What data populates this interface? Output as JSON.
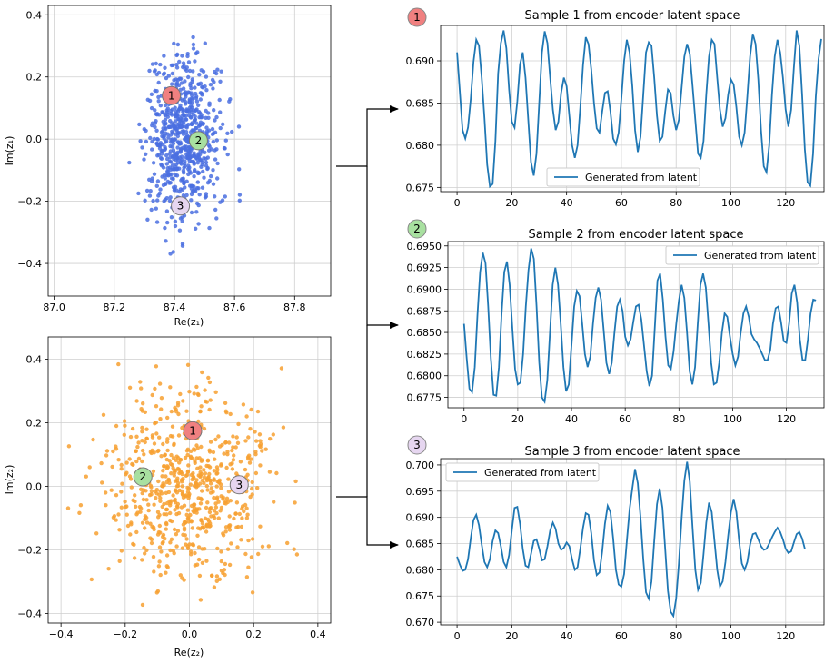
{
  "colors": {
    "blue_points": "#4a6ee0",
    "orange_points": "#f7a030",
    "line": "#1f77b4",
    "marker1": "#f08080",
    "marker2": "#a8e0a0",
    "marker3": "#e6d6f0"
  },
  "chart_data": [
    {
      "id": "scatter1",
      "type": "scatter",
      "xlabel": "Re(z₁)",
      "ylabel": "Im(z₁)",
      "xlim": [
        86.98,
        87.92
      ],
      "ylim": [
        -0.505,
        0.43
      ],
      "xticks": [
        87.0,
        87.2,
        87.4,
        87.6,
        87.8
      ],
      "xtick_labels": [
        "87.0",
        "87.2",
        "87.4",
        "87.6",
        "87.8"
      ],
      "yticks": [
        -0.4,
        -0.2,
        0.0,
        0.2,
        0.4
      ],
      "ytick_labels": [
        "−0.4",
        "−0.2",
        "0.0",
        "0.2",
        "0.4"
      ],
      "cloud": {
        "center_x": 87.43,
        "center_y": 0.0,
        "spread_x": 0.06,
        "spread_y": 0.13,
        "count": 700,
        "seed": 7
      },
      "points": [
        {
          "label": "1",
          "x": 87.39,
          "y": 0.14,
          "color": "marker1"
        },
        {
          "label": "2",
          "x": 87.48,
          "y": -0.005,
          "color": "marker2"
        },
        {
          "label": "3",
          "x": 87.42,
          "y": -0.215,
          "color": "marker3"
        }
      ]
    },
    {
      "id": "scatter2",
      "type": "scatter",
      "xlabel": "Re(z₂)",
      "ylabel": "Im(z₂)",
      "xlim": [
        -0.44,
        0.44
      ],
      "ylim": [
        -0.43,
        0.47
      ],
      "xticks": [
        -0.4,
        -0.2,
        0.0,
        0.2,
        0.4
      ],
      "xtick_labels": [
        "−0.4",
        "−0.2",
        "0.0",
        "0.2",
        "0.4"
      ],
      "yticks": [
        -0.4,
        -0.2,
        0.0,
        0.2,
        0.4
      ],
      "ytick_labels": [
        "−0.4",
        "−0.2",
        "0.0",
        "0.2",
        "0.4"
      ],
      "cloud": {
        "center_x": 0.0,
        "center_y": 0.0,
        "spread_x": 0.13,
        "spread_y": 0.14,
        "count": 700,
        "seed": 13
      },
      "points": [
        {
          "label": "1",
          "x": 0.01,
          "y": 0.175,
          "color": "marker1"
        },
        {
          "label": "2",
          "x": -0.145,
          "y": 0.03,
          "color": "marker2"
        },
        {
          "label": "3",
          "x": 0.155,
          "y": 0.005,
          "color": "marker3"
        }
      ]
    },
    {
      "id": "line1",
      "type": "line",
      "title": "Sample 1 from encoder latent space",
      "badge": "1",
      "badge_color": "marker1",
      "legend": "Generated from latent",
      "legend_pos": "lower-center",
      "xlim": [
        -6,
        134
      ],
      "ylim": [
        0.6745,
        0.6942
      ],
      "xticks": [
        0,
        20,
        40,
        60,
        80,
        100,
        120
      ],
      "xtick_labels": [
        "0",
        "20",
        "40",
        "60",
        "80",
        "100",
        "120"
      ],
      "yticks": [
        0.675,
        0.68,
        0.685,
        0.69
      ],
      "ytick_labels": [
        "0.675",
        "0.680",
        "0.685",
        "0.690"
      ],
      "x_start": 0,
      "x_step": 1,
      "y": [
        0.691,
        0.6864,
        0.6818,
        0.6808,
        0.6821,
        0.6855,
        0.6899,
        0.6925,
        0.6918,
        0.688,
        0.6832,
        0.6777,
        0.6751,
        0.6754,
        0.6805,
        0.6885,
        0.6921,
        0.6936,
        0.6915,
        0.6866,
        0.6828,
        0.6821,
        0.6852,
        0.6896,
        0.691,
        0.688,
        0.683,
        0.678,
        0.6764,
        0.679,
        0.685,
        0.691,
        0.6935,
        0.6921,
        0.688,
        0.6842,
        0.6818,
        0.6828,
        0.6862,
        0.688,
        0.687,
        0.6835,
        0.68,
        0.6785,
        0.68,
        0.6845,
        0.6895,
        0.6928,
        0.692,
        0.689,
        0.685,
        0.682,
        0.6815,
        0.684,
        0.6862,
        0.6864,
        0.684,
        0.6808,
        0.6801,
        0.6815,
        0.6855,
        0.69,
        0.6925,
        0.691,
        0.687,
        0.6818,
        0.6792,
        0.681,
        0.686,
        0.691,
        0.6922,
        0.6918,
        0.688,
        0.6835,
        0.6805,
        0.681,
        0.684,
        0.6866,
        0.6862,
        0.6835,
        0.6818,
        0.683,
        0.6868,
        0.6905,
        0.692,
        0.6908,
        0.687,
        0.683,
        0.679,
        0.6785,
        0.6805,
        0.686,
        0.6905,
        0.6925,
        0.692,
        0.688,
        0.6842,
        0.6822,
        0.6832,
        0.686,
        0.6878,
        0.6872,
        0.6845,
        0.681,
        0.68,
        0.6815,
        0.6858,
        0.6905,
        0.6932,
        0.692,
        0.6878,
        0.6818,
        0.6775,
        0.6768,
        0.68,
        0.686,
        0.6905,
        0.6925,
        0.691,
        0.688,
        0.6842,
        0.6822,
        0.6842,
        0.6892,
        0.6936,
        0.6918,
        0.686,
        0.6795,
        0.6756,
        0.6752,
        0.679,
        0.6858,
        0.6902,
        0.6926
      ]
    },
    {
      "id": "line2",
      "type": "line",
      "title": "Sample 2 from encoder latent space",
      "badge": "2",
      "badge_color": "marker2",
      "legend": "Generated from latent",
      "legend_pos": "upper-right",
      "xlim": [
        -6,
        134
      ],
      "ylim": [
        0.6763,
        0.6955
      ],
      "xticks": [
        0,
        20,
        40,
        60,
        80,
        100,
        120
      ],
      "xtick_labels": [
        "0",
        "20",
        "40",
        "60",
        "80",
        "100",
        "120"
      ],
      "yticks": [
        0.6775,
        0.68,
        0.6825,
        0.685,
        0.6875,
        0.69,
        0.6925,
        0.695
      ],
      "ytick_labels": [
        "0.6775",
        "0.6800",
        "0.6825",
        "0.6850",
        "0.6875",
        "0.6900",
        "0.6925",
        "0.6950"
      ],
      "x_start": 0,
      "x_step": 1,
      "y": [
        0.686,
        0.682,
        0.6785,
        0.6781,
        0.681,
        0.687,
        0.692,
        0.6942,
        0.693,
        0.688,
        0.682,
        0.6778,
        0.6777,
        0.681,
        0.6872,
        0.692,
        0.6932,
        0.6905,
        0.6855,
        0.6808,
        0.679,
        0.6792,
        0.6825,
        0.688,
        0.6922,
        0.6947,
        0.6935,
        0.688,
        0.6815,
        0.6775,
        0.677,
        0.6795,
        0.685,
        0.6905,
        0.6925,
        0.6905,
        0.686,
        0.681,
        0.6782,
        0.679,
        0.6835,
        0.688,
        0.6898,
        0.6892,
        0.686,
        0.6825,
        0.681,
        0.6822,
        0.686,
        0.689,
        0.6902,
        0.6888,
        0.6852,
        0.6815,
        0.6802,
        0.6815,
        0.685,
        0.688,
        0.6888,
        0.6875,
        0.6845,
        0.6835,
        0.6842,
        0.6862,
        0.688,
        0.6882,
        0.6865,
        0.6835,
        0.6805,
        0.6788,
        0.68,
        0.6855,
        0.691,
        0.6918,
        0.6888,
        0.6845,
        0.6812,
        0.6808,
        0.6828,
        0.686,
        0.6887,
        0.6905,
        0.689,
        0.685,
        0.6805,
        0.679,
        0.681,
        0.686,
        0.6905,
        0.6918,
        0.6902,
        0.686,
        0.6815,
        0.679,
        0.6792,
        0.6815,
        0.685,
        0.6872,
        0.6868,
        0.6845,
        0.6825,
        0.6812,
        0.6822,
        0.685,
        0.6872,
        0.688,
        0.6868,
        0.6848,
        0.6842,
        0.6838,
        0.6832,
        0.6825,
        0.6818,
        0.6818,
        0.683,
        0.686,
        0.6878,
        0.688,
        0.6862,
        0.684,
        0.6838,
        0.686,
        0.6895,
        0.6905,
        0.6885,
        0.6842,
        0.6818,
        0.6818,
        0.6842,
        0.6872,
        0.6888,
        0.6887
      ]
    },
    {
      "id": "line3",
      "type": "line",
      "title": "Sample 3 from encoder latent space",
      "badge": "3",
      "badge_color": "marker3",
      "legend": "Generated from latent",
      "legend_pos": "upper-left",
      "xlim": [
        -6,
        134
      ],
      "ylim": [
        0.6695,
        0.7012
      ],
      "xticks": [
        0,
        20,
        40,
        60,
        80,
        100,
        120
      ],
      "xtick_labels": [
        "0",
        "20",
        "40",
        "60",
        "80",
        "100",
        "120"
      ],
      "yticks": [
        0.67,
        0.675,
        0.68,
        0.685,
        0.69,
        0.695,
        0.7
      ],
      "ytick_labels": [
        "0.670",
        "0.675",
        "0.680",
        "0.685",
        "0.690",
        "0.695",
        "0.700"
      ],
      "x_start": 0,
      "x_step": 1,
      "y": [
        0.6825,
        0.681,
        0.6798,
        0.68,
        0.682,
        0.686,
        0.6895,
        0.6905,
        0.6885,
        0.6848,
        0.6815,
        0.6805,
        0.682,
        0.6855,
        0.6875,
        0.687,
        0.6845,
        0.6815,
        0.6805,
        0.6828,
        0.6875,
        0.6918,
        0.692,
        0.6888,
        0.684,
        0.6808,
        0.6805,
        0.683,
        0.6855,
        0.6858,
        0.684,
        0.6818,
        0.682,
        0.6845,
        0.6875,
        0.689,
        0.6878,
        0.685,
        0.6838,
        0.6842,
        0.6852,
        0.6845,
        0.682,
        0.68,
        0.6805,
        0.684,
        0.688,
        0.6908,
        0.6905,
        0.687,
        0.6818,
        0.679,
        0.6795,
        0.6835,
        0.6888,
        0.6922,
        0.691,
        0.686,
        0.68,
        0.6772,
        0.6768,
        0.6792,
        0.6855,
        0.6915,
        0.6955,
        0.6992,
        0.6965,
        0.69,
        0.682,
        0.6757,
        0.6745,
        0.6778,
        0.6855,
        0.6925,
        0.6955,
        0.6918,
        0.684,
        0.676,
        0.672,
        0.6712,
        0.6745,
        0.6812,
        0.6898,
        0.697,
        0.7006,
        0.6968,
        0.688,
        0.68,
        0.6762,
        0.6775,
        0.683,
        0.689,
        0.6928,
        0.691,
        0.6855,
        0.68,
        0.6768,
        0.6778,
        0.6815,
        0.6865,
        0.691,
        0.6935,
        0.691,
        0.6855,
        0.6812,
        0.68,
        0.6815,
        0.6848,
        0.6868,
        0.687,
        0.6858,
        0.6845,
        0.6838,
        0.684,
        0.685,
        0.6862,
        0.6872,
        0.688,
        0.6872,
        0.6858,
        0.684,
        0.6832,
        0.6835,
        0.6852,
        0.6868,
        0.6872,
        0.686,
        0.684
      ]
    }
  ]
}
